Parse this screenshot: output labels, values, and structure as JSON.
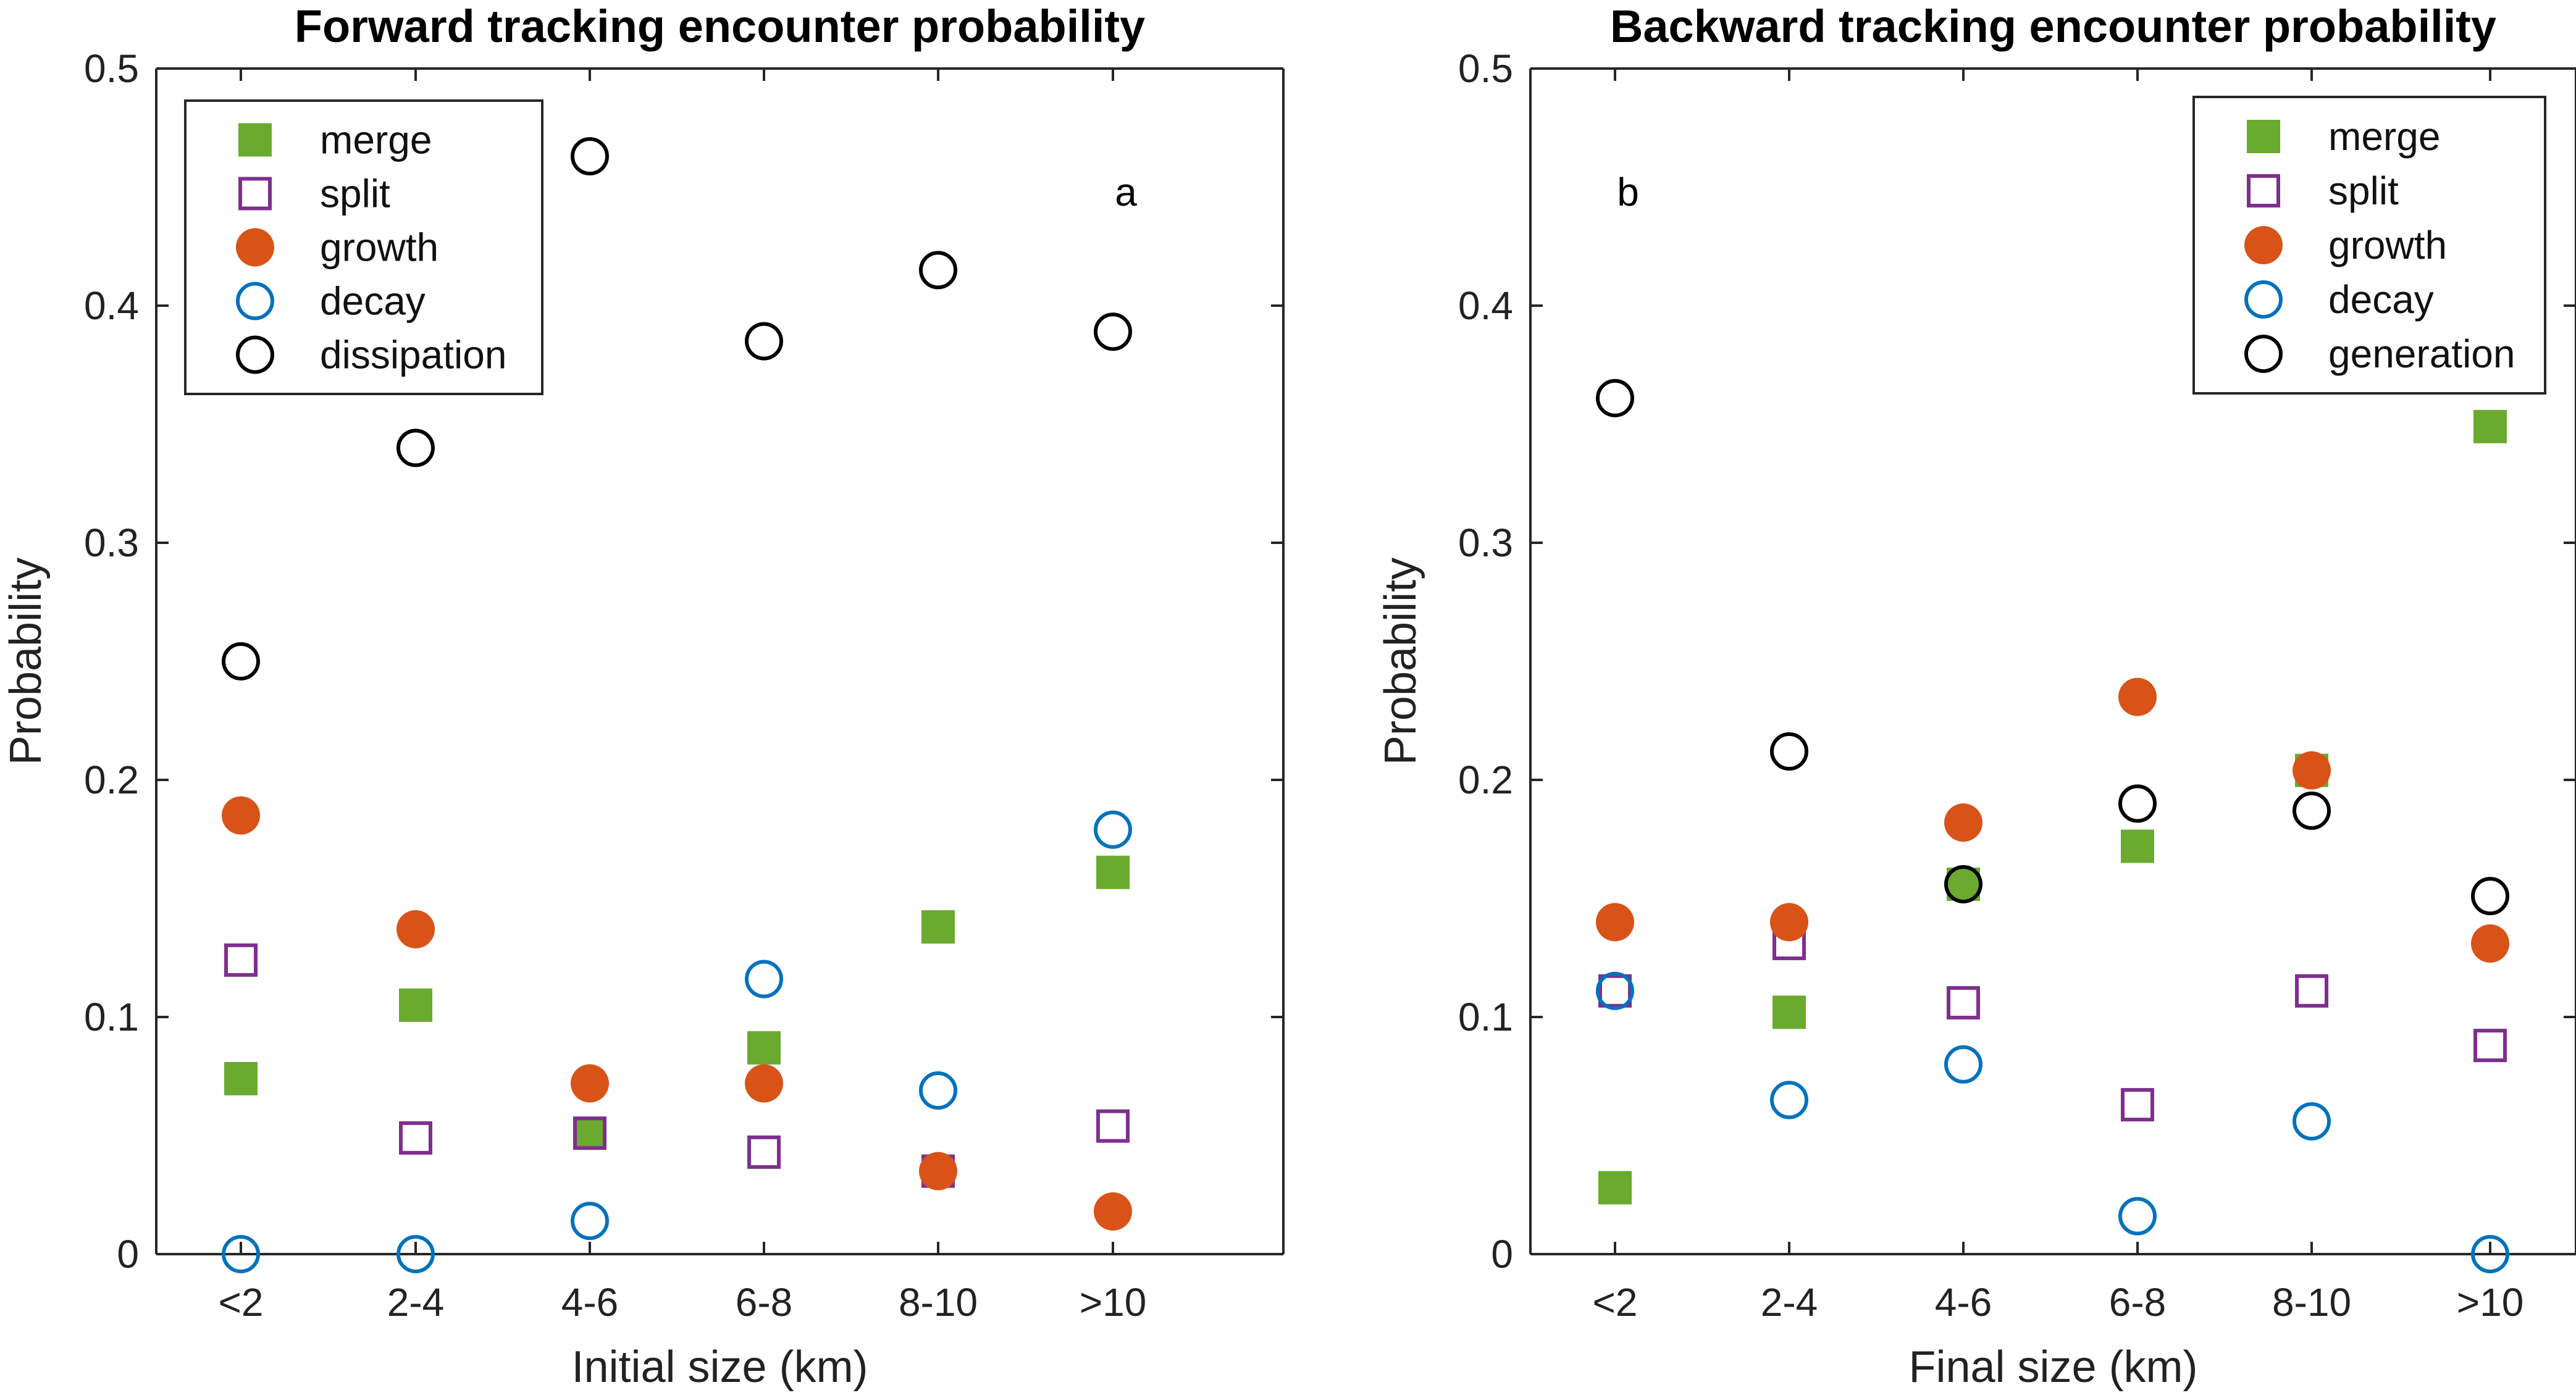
{
  "chart_data": [
    {
      "type": "scatter",
      "title": "Forward tracking encounter probability",
      "xlabel": "Initial size (km)",
      "ylabel": "Probability",
      "panel_label": "a",
      "categories": [
        "<2",
        "2-4",
        "4-6",
        "6-8",
        "8-10",
        ">10"
      ],
      "ylim": [
        0,
        0.5
      ],
      "yticks": [
        "0",
        "0.1",
        "0.2",
        "0.3",
        "0.4",
        "0.5"
      ],
      "grid": false,
      "legend_position": "top-left",
      "series": [
        {
          "name": "merge",
          "marker": "filled-square",
          "color": "#6aaa2f",
          "values": [
            0.074,
            0.105,
            0.051,
            0.087,
            0.138,
            0.161
          ]
        },
        {
          "name": "split",
          "marker": "open-square",
          "color": "#7e2f8e",
          "values": [
            0.124,
            0.049,
            0.051,
            0.043,
            0.035,
            0.054
          ]
        },
        {
          "name": "growth",
          "marker": "filled-circle",
          "color": "#d95319",
          "values": [
            0.185,
            0.137,
            0.072,
            0.072,
            0.035,
            0.018
          ]
        },
        {
          "name": "decay",
          "marker": "open-circle",
          "color": "#0072bd",
          "values": [
            0.0,
            0.0,
            0.014,
            0.116,
            0.069,
            0.179
          ]
        },
        {
          "name": "dissipation",
          "marker": "open-circle",
          "color": "#000000",
          "values": [
            0.25,
            0.34,
            0.463,
            0.385,
            0.415,
            0.389
          ]
        }
      ]
    },
    {
      "type": "scatter",
      "title": "Backward tracking encounter probability",
      "xlabel": "Final size (km)",
      "ylabel": "Probability",
      "panel_label": "b",
      "categories": [
        "<2",
        "2-4",
        "4-6",
        "6-8",
        "8-10",
        ">10"
      ],
      "ylim": [
        0,
        0.5
      ],
      "yticks": [
        "0",
        "0.1",
        "0.2",
        "0.3",
        "0.4",
        "0.5"
      ],
      "grid": false,
      "legend_position": "top-right",
      "series": [
        {
          "name": "merge",
          "marker": "filled-square",
          "color": "#6aaa2f",
          "values": [
            0.028,
            0.102,
            0.156,
            0.172,
            0.204,
            0.349
          ]
        },
        {
          "name": "split",
          "marker": "open-square",
          "color": "#7e2f8e",
          "values": [
            0.111,
            0.131,
            0.106,
            0.063,
            0.111,
            0.088
          ]
        },
        {
          "name": "growth",
          "marker": "filled-circle",
          "color": "#d95319",
          "values": [
            0.14,
            0.14,
            0.182,
            0.235,
            0.204,
            0.131
          ]
        },
        {
          "name": "decay",
          "marker": "open-circle",
          "color": "#0072bd",
          "values": [
            0.111,
            0.065,
            0.08,
            0.016,
            0.056,
            0.0
          ]
        },
        {
          "name": "generation",
          "marker": "open-circle",
          "color": "#000000",
          "values": [
            0.361,
            0.212,
            0.156,
            0.19,
            0.187,
            0.151
          ]
        }
      ]
    }
  ]
}
